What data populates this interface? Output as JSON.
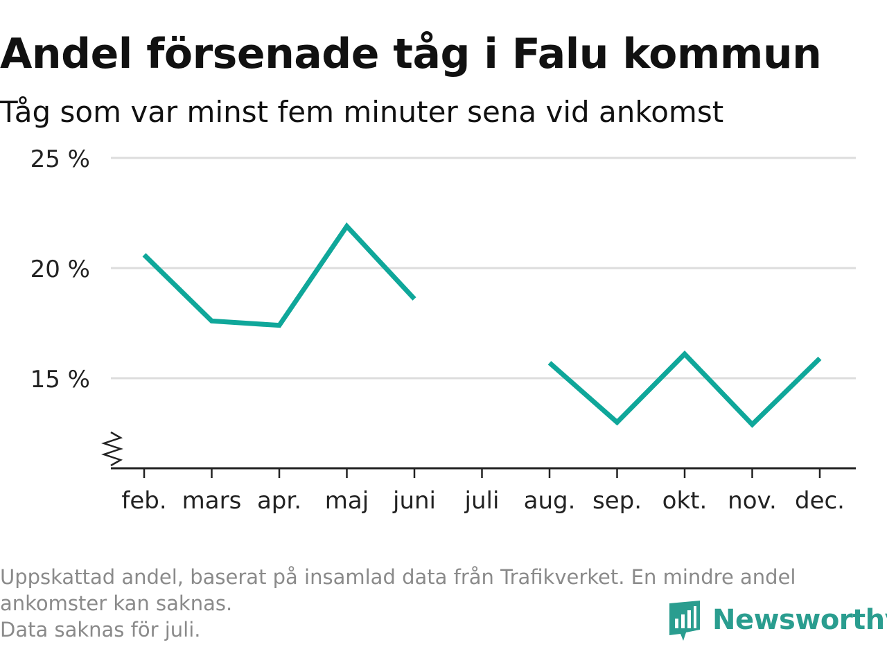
{
  "title": "Andel försenade tåg i Falu kommun",
  "subtitle": "Tåg som var minst fem minuter sena vid ankomst",
  "chart_data": {
    "type": "line",
    "categories": [
      "feb.",
      "mars",
      "apr.",
      "maj",
      "juni",
      "juli",
      "aug.",
      "sep.",
      "okt.",
      "nov.",
      "dec."
    ],
    "values": [
      20.6,
      17.6,
      17.4,
      21.9,
      18.6,
      null,
      15.7,
      13.0,
      16.1,
      12.9,
      15.9
    ],
    "ytick_values": [
      15,
      20,
      25
    ],
    "ytick_labels": [
      "15 %",
      "20 %",
      "25 %"
    ],
    "ylim": [
      11,
      25
    ],
    "y_axis_break": true,
    "grid": true,
    "line_color": "#0fa79a",
    "grid_color": "#dddddd"
  },
  "footnote": {
    "line1": "Uppskattad andel, baserat på insamlad data från Trafikverket. En mindre andel",
    "line2": "ankomster kan saknas.",
    "line3": "Data saknas för juli."
  },
  "logo": {
    "text": "Newsworthy",
    "icon": "newsworthy-logo-icon",
    "color": "#2a9d8f"
  }
}
